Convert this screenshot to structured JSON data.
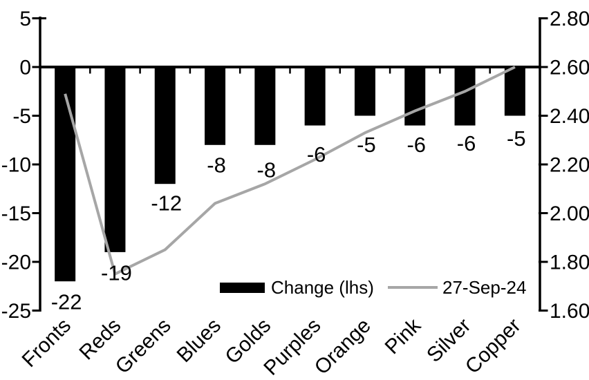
{
  "chart_data": {
    "type": "combo_bar_line",
    "title": "",
    "background": "#ffffff",
    "grid": false,
    "categories": [
      "Fronts",
      "Reds",
      "Greens",
      "Blues",
      "Golds",
      "Purples",
      "Orange",
      "Pink",
      "Silver",
      "Copper"
    ],
    "series": [
      {
        "name": "Change (lhs)",
        "type": "bar",
        "axis": "left",
        "color": "#000000",
        "values": [
          -22,
          -19,
          -12,
          -8,
          -8,
          -6,
          -5,
          -6,
          -6,
          -5
        ],
        "data_labels": [
          "-22",
          "-19",
          "-12",
          "-8",
          "-8",
          "-6",
          "-5",
          "-6",
          "-6",
          "-5"
        ]
      },
      {
        "name": "27-Sep-24",
        "type": "line",
        "axis": "right",
        "color": "#a6a6a6",
        "values": [
          2.49,
          1.75,
          1.85,
          2.04,
          2.12,
          2.22,
          2.33,
          2.42,
          2.5,
          2.6
        ]
      }
    ],
    "left_axis": {
      "min": -25,
      "max": 5,
      "step": 5,
      "ticks": [
        "5",
        "0",
        "-5",
        "-10",
        "-15",
        "-20",
        "-25"
      ]
    },
    "right_axis": {
      "min": 1.6,
      "max": 2.8,
      "step": 0.2,
      "ticks": [
        "2.80",
        "2.60",
        "2.40",
        "2.20",
        "2.00",
        "1.80",
        "1.60"
      ]
    },
    "legend": {
      "position": "bottom-inside",
      "items": [
        {
          "label": "Change (lhs)",
          "swatch": "bar",
          "color": "#000000"
        },
        {
          "label": "27-Sep-24",
          "swatch": "line",
          "color": "#a6a6a6"
        }
      ]
    },
    "text_color": "#000000"
  }
}
